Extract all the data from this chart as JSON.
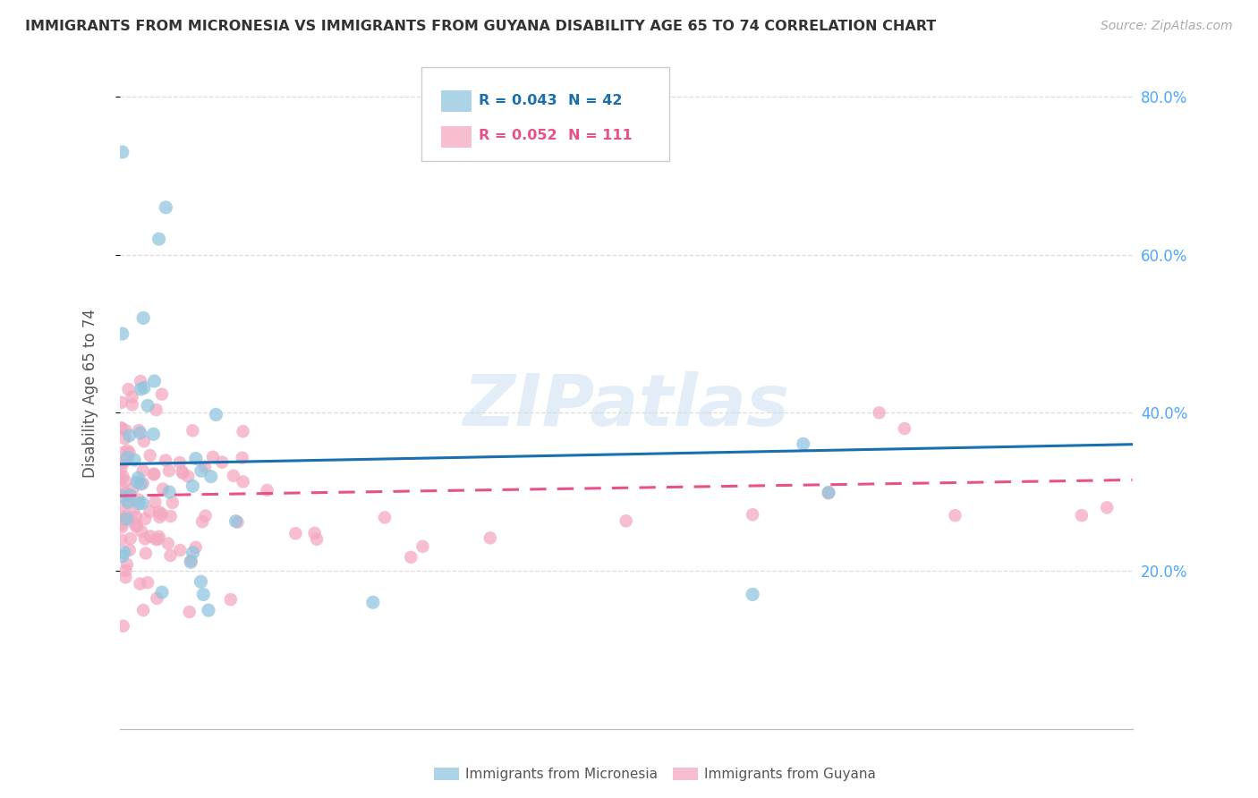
{
  "title": "IMMIGRANTS FROM MICRONESIA VS IMMIGRANTS FROM GUYANA DISABILITY AGE 65 TO 74 CORRELATION CHART",
  "source": "Source: ZipAtlas.com",
  "ylabel": "Disability Age 65 to 74",
  "ylabel_right_ticks": [
    "20.0%",
    "40.0%",
    "60.0%",
    "80.0%"
  ],
  "ylabel_right_vals": [
    0.2,
    0.4,
    0.6,
    0.8
  ],
  "xlim": [
    0.0,
    0.4
  ],
  "ylim": [
    0.0,
    0.85
  ],
  "micronesia_color": "#92c5de",
  "guyana_color": "#f4a9c0",
  "micronesia_R": 0.043,
  "micronesia_N": 42,
  "guyana_R": 0.052,
  "guyana_N": 111,
  "micronesia_line_color": "#1a6faf",
  "guyana_line_color": "#e8508a",
  "watermark": "ZIPatlas",
  "background_color": "#ffffff",
  "grid_color": "#dddddd",
  "right_axis_color": "#4da6ff",
  "micro_line_start_y": 0.335,
  "micro_line_end_y": 0.36,
  "guyana_line_start_y": 0.295,
  "guyana_line_end_y": 0.315
}
